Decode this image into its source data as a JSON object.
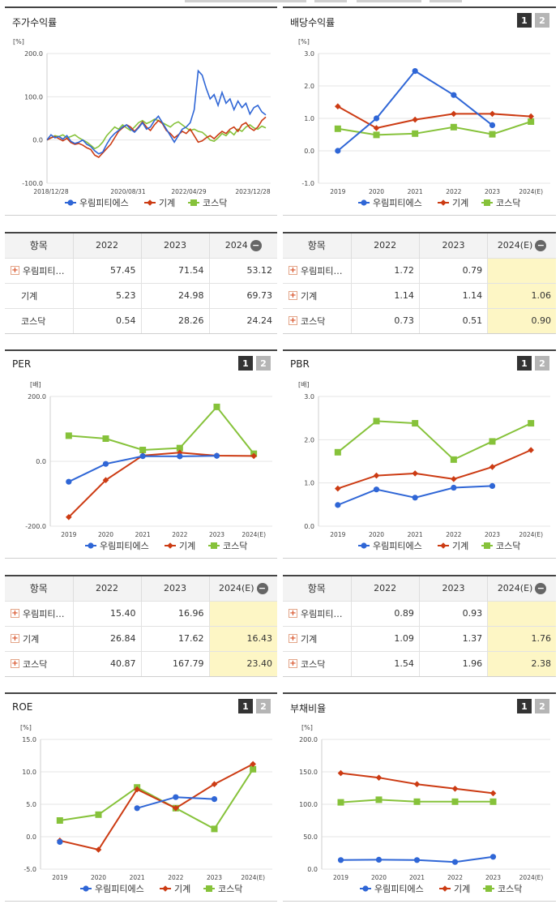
{
  "legend_labels": [
    "우림피티에스",
    "기계",
    "코스닥"
  ],
  "colors": {
    "a": "#2f66d6",
    "b": "#cc3b13",
    "c": "#86c23a"
  },
  "panels": {
    "stock": {
      "title": "주가수익률",
      "unit": "[%]"
    },
    "div": {
      "title": "배당수익률",
      "unit": "[%]"
    },
    "per": {
      "title": "PER",
      "unit": "[배]"
    },
    "pbr": {
      "title": "PBR",
      "unit": "[배]"
    },
    "roe": {
      "title": "ROE",
      "unit": "[%]"
    },
    "debt": {
      "title": "부채비율",
      "unit": "[%]"
    }
  },
  "buttons": {
    "one": "1",
    "two": "2"
  },
  "chart_data": [
    {
      "type": "line",
      "id": "stock",
      "title": "주가수익률",
      "ylim": [
        -100,
        200
      ],
      "yticks": [
        "200.0",
        "100.0",
        "0.0",
        "-100.0"
      ],
      "xticks": [
        "2018/12/28",
        "2020/08/31",
        "2022/04/29",
        "2023/12/28"
      ],
      "series": [
        {
          "name": "우림피티에스",
          "values": [
            0,
            12,
            5,
            8,
            2,
            10,
            -3,
            -8,
            -5,
            0,
            -10,
            -15,
            -25,
            -32,
            -28,
            -10,
            5,
            15,
            22,
            30,
            35,
            25,
            18,
            28,
            40,
            25,
            30,
            45,
            55,
            40,
            25,
            10,
            -5,
            10,
            25,
            30,
            40,
            70,
            160,
            150,
            120,
            95,
            105,
            80,
            110,
            85,
            95,
            70,
            90,
            75,
            85,
            60,
            75,
            80,
            65,
            58
          ]
        },
        {
          "name": "기계",
          "values": [
            0,
            5,
            8,
            3,
            -2,
            4,
            -6,
            -10,
            -8,
            -12,
            -18,
            -22,
            -35,
            -40,
            -30,
            -20,
            -10,
            5,
            20,
            28,
            35,
            30,
            20,
            30,
            42,
            30,
            22,
            35,
            45,
            38,
            22,
            15,
            5,
            12,
            20,
            15,
            25,
            10,
            -5,
            -2,
            5,
            10,
            3,
            12,
            20,
            15,
            25,
            30,
            20,
            35,
            40,
            28,
            22,
            30,
            45,
            53
          ]
        },
        {
          "name": "코스닥",
          "values": [
            0,
            5,
            10,
            8,
            12,
            5,
            8,
            12,
            5,
            0,
            -5,
            -12,
            -20,
            -15,
            -5,
            10,
            20,
            30,
            25,
            35,
            28,
            22,
            30,
            40,
            45,
            38,
            42,
            48,
            45,
            40,
            35,
            30,
            38,
            42,
            35,
            28,
            22,
            25,
            20,
            18,
            10,
            0,
            -3,
            5,
            15,
            10,
            20,
            12,
            25,
            20,
            30,
            35,
            28,
            25,
            32,
            28
          ]
        }
      ]
    },
    {
      "type": "line",
      "id": "div",
      "title": "배당수익률",
      "ylim": [
        -1,
        3
      ],
      "yticks": [
        "3.0",
        "2.0",
        "1.0",
        "0.0",
        "-1.0"
      ],
      "categories": [
        "2019",
        "2020",
        "2021",
        "2022",
        "2023",
        "2024(E)"
      ],
      "series": [
        {
          "name": "우림피티에스",
          "values": [
            0.0,
            1.0,
            2.46,
            1.72,
            0.79,
            null
          ]
        },
        {
          "name": "기계",
          "values": [
            1.37,
            0.7,
            0.96,
            1.14,
            1.14,
            1.06
          ]
        },
        {
          "name": "코스닥",
          "values": [
            0.68,
            0.49,
            0.53,
            0.73,
            0.51,
            0.9
          ]
        }
      ]
    },
    {
      "type": "line",
      "id": "per",
      "title": "PER",
      "ylim": [
        -200,
        200
      ],
      "yticks": [
        "200.0",
        "0.0",
        "-200.0"
      ],
      "categories": [
        "2019",
        "2020",
        "2021",
        "2022",
        "2023",
        "2024(E)"
      ],
      "series": [
        {
          "name": "우림피티에스",
          "values": [
            -63,
            -8,
            16,
            15.4,
            16.96,
            null
          ]
        },
        {
          "name": "기계",
          "values": [
            -172,
            -58,
            18,
            26.84,
            17.62,
            16.43
          ]
        },
        {
          "name": "코스닥",
          "values": [
            79,
            70,
            35,
            40.87,
            167.79,
            23.4
          ]
        }
      ]
    },
    {
      "type": "line",
      "id": "pbr",
      "title": "PBR",
      "ylim": [
        0,
        3
      ],
      "yticks": [
        "3.0",
        "2.0",
        "1.0",
        "0.0"
      ],
      "categories": [
        "2019",
        "2020",
        "2021",
        "2022",
        "2023",
        "2024(E)"
      ],
      "series": [
        {
          "name": "우림피티에스",
          "values": [
            0.49,
            0.85,
            0.66,
            0.89,
            0.93,
            null
          ]
        },
        {
          "name": "기계",
          "values": [
            0.87,
            1.17,
            1.22,
            1.09,
            1.37,
            1.76
          ]
        },
        {
          "name": "코스닥",
          "values": [
            1.71,
            2.43,
            2.38,
            1.54,
            1.96,
            2.38
          ]
        }
      ]
    },
    {
      "type": "line",
      "id": "roe",
      "title": "ROE",
      "ylim": [
        -5,
        15
      ],
      "yticks": [
        "15.0",
        "10.0",
        "5.0",
        "0.0",
        "-5.0"
      ],
      "categories": [
        "2019",
        "2020",
        "2021",
        "2022",
        "2023",
        "2024(E)"
      ],
      "series": [
        {
          "name": "우림피티에스",
          "values": [
            -0.8,
            null,
            4.4,
            6.1,
            5.8,
            null
          ]
        },
        {
          "name": "기계",
          "values": [
            -0.6,
            -2.0,
            7.3,
            4.4,
            8.1,
            11.2
          ]
        },
        {
          "name": "코스닥",
          "values": [
            2.5,
            3.4,
            7.6,
            4.4,
            1.2,
            10.4
          ]
        }
      ]
    },
    {
      "type": "line",
      "id": "debt",
      "title": "부채비율",
      "ylim": [
        0,
        200
      ],
      "yticks": [
        "200.0",
        "150.0",
        "100.0",
        "50.0",
        "0.0"
      ],
      "categories": [
        "2019",
        "2020",
        "2021",
        "2022",
        "2023",
        "2024(E)"
      ],
      "series": [
        {
          "name": "우림피티에스",
          "values": [
            14,
            14.5,
            14,
            11,
            19,
            null
          ]
        },
        {
          "name": "기계",
          "values": [
            148,
            141,
            131,
            124,
            117,
            null
          ]
        },
        {
          "name": "코스닥",
          "values": [
            103,
            107,
            104,
            104,
            104,
            null
          ]
        }
      ]
    }
  ],
  "tables": [
    {
      "id": "t-stock",
      "head": [
        "항목",
        "2022",
        "2023",
        "2024"
      ],
      "est": false,
      "minus": true,
      "rows": [
        {
          "name": "우림피티…",
          "plus": true,
          "vals": [
            "57.45",
            "71.54",
            "53.12"
          ]
        },
        {
          "name": "기계",
          "plus": false,
          "vals": [
            "5.23",
            "24.98",
            "69.73"
          ]
        },
        {
          "name": "코스닥",
          "plus": false,
          "vals": [
            "0.54",
            "28.26",
            "24.24"
          ]
        }
      ]
    },
    {
      "id": "t-div",
      "head": [
        "항목",
        "2022",
        "2023",
        "2024(E)"
      ],
      "est": true,
      "minus": true,
      "rows": [
        {
          "name": "우림피티…",
          "plus": true,
          "vals": [
            "1.72",
            "0.79",
            ""
          ]
        },
        {
          "name": "기계",
          "plus": true,
          "vals": [
            "1.14",
            "1.14",
            "1.06"
          ]
        },
        {
          "name": "코스닥",
          "plus": true,
          "vals": [
            "0.73",
            "0.51",
            "0.90"
          ]
        }
      ]
    },
    {
      "id": "t-per",
      "head": [
        "항목",
        "2022",
        "2023",
        "2024(E)"
      ],
      "est": true,
      "minus": true,
      "rows": [
        {
          "name": "우림피티…",
          "plus": true,
          "vals": [
            "15.40",
            "16.96",
            ""
          ]
        },
        {
          "name": "기계",
          "plus": true,
          "vals": [
            "26.84",
            "17.62",
            "16.43"
          ]
        },
        {
          "name": "코스닥",
          "plus": true,
          "vals": [
            "40.87",
            "167.79",
            "23.40"
          ]
        }
      ]
    },
    {
      "id": "t-pbr",
      "head": [
        "항목",
        "2022",
        "2023",
        "2024(E)"
      ],
      "est": true,
      "minus": true,
      "rows": [
        {
          "name": "우림피티…",
          "plus": true,
          "vals": [
            "0.89",
            "0.93",
            ""
          ]
        },
        {
          "name": "기계",
          "plus": true,
          "vals": [
            "1.09",
            "1.37",
            "1.76"
          ]
        },
        {
          "name": "코스닥",
          "plus": true,
          "vals": [
            "1.54",
            "1.96",
            "2.38"
          ]
        }
      ]
    }
  ]
}
